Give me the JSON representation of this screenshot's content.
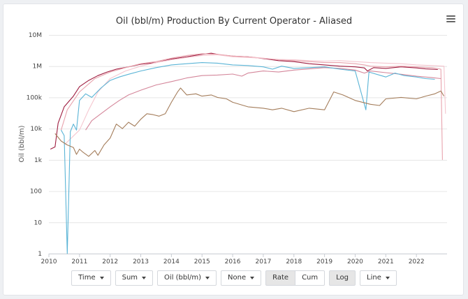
{
  "chart_data": {
    "type": "line",
    "title": "Oil (bbl/m) Production By Current Operator - Aliased",
    "ylabel": "Oil (bbl/m)",
    "xlabel": "",
    "yscale": "log",
    "ylim": [
      1,
      10000000
    ],
    "xlim": [
      2010,
      2023
    ],
    "y_tick_labels": [
      "1",
      "10",
      "100",
      "1k",
      "10k",
      "100k",
      "1M",
      "10M"
    ],
    "x_tick_labels": [
      "2010",
      "2011",
      "2012",
      "2013",
      "2014",
      "2015",
      "2016",
      "2017",
      "2018",
      "2019",
      "2020",
      "2021",
      "2022"
    ],
    "series": [
      {
        "color": "#9e1c3f",
        "points": [
          [
            2010.05,
            2200
          ],
          [
            2010.2,
            2600
          ],
          [
            2010.3,
            15000
          ],
          [
            2010.5,
            50000
          ],
          [
            2010.8,
            110000
          ],
          [
            2011.0,
            220000
          ],
          [
            2011.3,
            350000
          ],
          [
            2011.6,
            500000
          ],
          [
            2011.9,
            650000
          ],
          [
            2012.2,
            800000
          ],
          [
            2012.6,
            950000
          ],
          [
            2013.0,
            1150000
          ],
          [
            2013.5,
            1300000
          ],
          [
            2014.0,
            1700000
          ],
          [
            2014.5,
            2000000
          ],
          [
            2015.0,
            2400000
          ],
          [
            2015.3,
            2600000
          ],
          [
            2015.6,
            2300000
          ],
          [
            2016.0,
            2100000
          ],
          [
            2016.5,
            2000000
          ],
          [
            2017.0,
            1750000
          ],
          [
            2017.5,
            1500000
          ],
          [
            2018.0,
            1400000
          ],
          [
            2018.5,
            1200000
          ],
          [
            2019.0,
            1100000
          ],
          [
            2019.5,
            1000000
          ],
          [
            2020.0,
            950000
          ],
          [
            2020.3,
            880000
          ],
          [
            2020.4,
            700000
          ],
          [
            2020.6,
            900000
          ],
          [
            2021.0,
            850000
          ],
          [
            2021.5,
            950000
          ],
          [
            2022.0,
            880000
          ],
          [
            2022.3,
            820000
          ],
          [
            2022.7,
            780000
          ]
        ]
      },
      {
        "color": "#e8a3ad",
        "points": [
          [
            2010.4,
            9000
          ],
          [
            2010.6,
            40000
          ],
          [
            2011.0,
            150000
          ],
          [
            2011.5,
            400000
          ],
          [
            2012.0,
            650000
          ],
          [
            2012.5,
            900000
          ],
          [
            2013.0,
            1200000
          ],
          [
            2013.5,
            1400000
          ],
          [
            2014.0,
            1800000
          ],
          [
            2014.5,
            2200000
          ],
          [
            2015.0,
            2500000
          ],
          [
            2015.5,
            2400000
          ],
          [
            2016.0,
            2100000
          ],
          [
            2016.5,
            2000000
          ],
          [
            2017.0,
            1800000
          ],
          [
            2017.5,
            1600000
          ],
          [
            2018.0,
            1500000
          ],
          [
            2018.5,
            1400000
          ],
          [
            2019.0,
            1300000
          ],
          [
            2019.5,
            1300000
          ],
          [
            2020.0,
            1200000
          ],
          [
            2020.3,
            1100000
          ],
          [
            2020.5,
            1000000
          ],
          [
            2021.0,
            950000
          ],
          [
            2021.5,
            1000000
          ],
          [
            2022.0,
            950000
          ],
          [
            2022.5,
            900000
          ],
          [
            2022.8,
            800000
          ],
          [
            2022.85,
            1000
          ]
        ]
      },
      {
        "color": "#f5c6cf",
        "points": [
          [
            2010.5,
            3000
          ],
          [
            2011.0,
            9000
          ],
          [
            2011.3,
            40000
          ],
          [
            2011.6,
            150000
          ],
          [
            2012.0,
            400000
          ],
          [
            2012.5,
            700000
          ],
          [
            2013.0,
            1000000
          ],
          [
            2013.5,
            1300000
          ],
          [
            2014.0,
            1600000
          ],
          [
            2014.5,
            1900000
          ],
          [
            2015.0,
            2200000
          ],
          [
            2015.5,
            2300000
          ],
          [
            2016.0,
            2000000
          ],
          [
            2016.5,
            1900000
          ],
          [
            2017.0,
            1800000
          ],
          [
            2017.5,
            1650000
          ],
          [
            2018.0,
            1600000
          ],
          [
            2018.5,
            1500000
          ],
          [
            2019.0,
            1450000
          ],
          [
            2019.5,
            1500000
          ],
          [
            2020.0,
            1400000
          ],
          [
            2020.5,
            1300000
          ],
          [
            2021.0,
            1250000
          ],
          [
            2021.5,
            1200000
          ],
          [
            2022.0,
            1100000
          ],
          [
            2022.5,
            1050000
          ],
          [
            2022.9,
            1000000
          ],
          [
            2022.95,
            30000
          ]
        ]
      },
      {
        "color": "#d4869a",
        "points": [
          [
            2011.2,
            9000
          ],
          [
            2011.4,
            18000
          ],
          [
            2011.7,
            30000
          ],
          [
            2012.0,
            50000
          ],
          [
            2012.3,
            80000
          ],
          [
            2012.6,
            120000
          ],
          [
            2013.0,
            170000
          ],
          [
            2013.5,
            250000
          ],
          [
            2014.0,
            320000
          ],
          [
            2014.5,
            420000
          ],
          [
            2015.0,
            500000
          ],
          [
            2015.5,
            520000
          ],
          [
            2016.0,
            560000
          ],
          [
            2016.3,
            480000
          ],
          [
            2016.5,
            600000
          ],
          [
            2017.0,
            700000
          ],
          [
            2017.5,
            650000
          ],
          [
            2018.0,
            750000
          ],
          [
            2018.5,
            820000
          ],
          [
            2019.0,
            900000
          ],
          [
            2019.5,
            850000
          ],
          [
            2020.0,
            750000
          ],
          [
            2020.3,
            600000
          ],
          [
            2020.5,
            700000
          ],
          [
            2021.0,
            620000
          ],
          [
            2021.5,
            550000
          ],
          [
            2022.0,
            480000
          ],
          [
            2022.5,
            430000
          ],
          [
            2022.8,
            400000
          ]
        ]
      },
      {
        "color": "#5ab4d6",
        "points": [
          [
            2010.4,
            9000
          ],
          [
            2010.5,
            6000
          ],
          [
            2010.6,
            1
          ],
          [
            2010.7,
            8000
          ],
          [
            2010.8,
            14000
          ],
          [
            2010.9,
            9000
          ],
          [
            2011.0,
            80000
          ],
          [
            2011.2,
            130000
          ],
          [
            2011.4,
            100000
          ],
          [
            2011.7,
            200000
          ],
          [
            2012.0,
            350000
          ],
          [
            2012.3,
            450000
          ],
          [
            2012.6,
            550000
          ],
          [
            2013.0,
            700000
          ],
          [
            2013.5,
            900000
          ],
          [
            2014.0,
            1100000
          ],
          [
            2014.5,
            1200000
          ],
          [
            2015.0,
            1300000
          ],
          [
            2015.5,
            1250000
          ],
          [
            2016.0,
            1100000
          ],
          [
            2016.5,
            1050000
          ],
          [
            2017.0,
            950000
          ],
          [
            2017.3,
            800000
          ],
          [
            2017.6,
            1000000
          ],
          [
            2018.0,
            850000
          ],
          [
            2018.5,
            900000
          ],
          [
            2019.0,
            950000
          ],
          [
            2019.5,
            800000
          ],
          [
            2020.0,
            700000
          ],
          [
            2020.35,
            40000
          ],
          [
            2020.45,
            650000
          ],
          [
            2021.0,
            450000
          ],
          [
            2021.3,
            600000
          ],
          [
            2021.6,
            500000
          ],
          [
            2022.0,
            450000
          ],
          [
            2022.3,
            400000
          ],
          [
            2022.6,
            380000
          ]
        ]
      },
      {
        "color": "#a47d5b",
        "points": [
          [
            2010.2,
            7000
          ],
          [
            2010.4,
            4000
          ],
          [
            2010.6,
            3000
          ],
          [
            2010.8,
            2500
          ],
          [
            2010.9,
            1500
          ],
          [
            2011.0,
            2200
          ],
          [
            2011.1,
            1800
          ],
          [
            2011.3,
            1300
          ],
          [
            2011.5,
            2000
          ],
          [
            2011.6,
            1400
          ],
          [
            2011.8,
            3000
          ],
          [
            2012.0,
            5000
          ],
          [
            2012.2,
            14000
          ],
          [
            2012.4,
            10000
          ],
          [
            2012.6,
            16000
          ],
          [
            2012.8,
            12000
          ],
          [
            2013.0,
            20000
          ],
          [
            2013.2,
            30000
          ],
          [
            2013.4,
            28000
          ],
          [
            2013.6,
            25000
          ],
          [
            2013.8,
            30000
          ],
          [
            2014.0,
            70000
          ],
          [
            2014.2,
            150000
          ],
          [
            2014.3,
            200000
          ],
          [
            2014.5,
            120000
          ],
          [
            2014.8,
            130000
          ],
          [
            2015.0,
            110000
          ],
          [
            2015.3,
            120000
          ],
          [
            2015.5,
            100000
          ],
          [
            2015.8,
            90000
          ],
          [
            2016.0,
            70000
          ],
          [
            2016.5,
            50000
          ],
          [
            2017.0,
            45000
          ],
          [
            2017.3,
            40000
          ],
          [
            2017.6,
            45000
          ],
          [
            2018.0,
            35000
          ],
          [
            2018.5,
            45000
          ],
          [
            2019.0,
            40000
          ],
          [
            2019.3,
            150000
          ],
          [
            2019.6,
            120000
          ],
          [
            2020.0,
            80000
          ],
          [
            2020.5,
            60000
          ],
          [
            2020.8,
            55000
          ],
          [
            2021.0,
            90000
          ],
          [
            2021.5,
            100000
          ],
          [
            2022.0,
            90000
          ],
          [
            2022.3,
            110000
          ],
          [
            2022.6,
            130000
          ],
          [
            2022.8,
            160000
          ],
          [
            2022.9,
            110000
          ]
        ]
      }
    ]
  },
  "controls": {
    "time_label": "Time",
    "sum_label": "Sum",
    "measure_label": "Oil (bbl/m)",
    "group_label": "None",
    "rate_label": "Rate",
    "cum_label": "Cum",
    "log_label": "Log",
    "line_label": "Line"
  }
}
